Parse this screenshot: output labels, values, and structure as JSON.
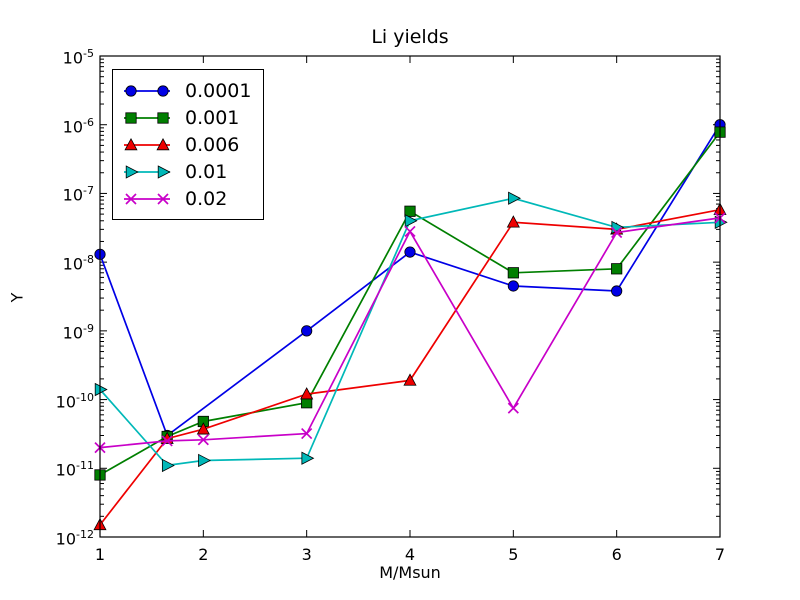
{
  "figure": {
    "background": "#ffffff",
    "axis_color": "#000000"
  },
  "chart_data": {
    "type": "line",
    "title": "Li yields",
    "xlabel": "M/Msun",
    "ylabel": "Y",
    "grid": false,
    "xlim": [
      1,
      7
    ],
    "x_ticks": [
      1,
      2,
      3,
      4,
      5,
      6,
      7
    ],
    "y_scale": "log",
    "ylim_exponents": [
      -12,
      -5
    ],
    "y_tick_exponents": [
      -5,
      -6,
      -7,
      -8,
      -9,
      -10,
      -11,
      -12
    ],
    "legend": {
      "position": "upper left"
    },
    "series": [
      {
        "name": "0.0001",
        "color": "#0000e6",
        "marker": "circle",
        "points": [
          [
            1,
            1.3e-08
          ],
          [
            1.65,
            3e-11
          ],
          [
            3,
            1e-09
          ],
          [
            4,
            1.4e-08
          ],
          [
            5,
            4.5e-09
          ],
          [
            6,
            3.8e-09
          ],
          [
            7,
            1e-06
          ]
        ]
      },
      {
        "name": "0.001",
        "color": "#007f00",
        "marker": "square",
        "points": [
          [
            1,
            8e-12
          ],
          [
            1.65,
            2.9e-11
          ],
          [
            2,
            4.8e-11
          ],
          [
            3,
            9e-11
          ],
          [
            4,
            5.5e-08
          ],
          [
            5,
            7e-09
          ],
          [
            6,
            8e-09
          ],
          [
            7,
            7.8e-07
          ]
        ]
      },
      {
        "name": "0.006",
        "color": "#ee0000",
        "marker": "triangle-up",
        "points": [
          [
            1,
            1.5e-12
          ],
          [
            1.65,
            2.7e-11
          ],
          [
            2,
            3.7e-11
          ],
          [
            3,
            1.2e-10
          ],
          [
            4,
            1.9e-10
          ],
          [
            5,
            3.8e-08
          ],
          [
            6,
            3e-08
          ],
          [
            7,
            5.8e-08
          ]
        ]
      },
      {
        "name": "0.01",
        "color": "#00b8b8",
        "marker": "triangle-right",
        "points": [
          [
            1,
            1.4e-10
          ],
          [
            1.65,
            1.1e-11
          ],
          [
            2,
            1.3e-11
          ],
          [
            3,
            1.4e-11
          ],
          [
            4,
            4e-08
          ],
          [
            5,
            8.5e-08
          ],
          [
            6,
            3.2e-08
          ],
          [
            7,
            3.8e-08
          ]
        ]
      },
      {
        "name": "0.02",
        "color": "#c800c8",
        "marker": "x",
        "points": [
          [
            1,
            2e-11
          ],
          [
            1.65,
            2.5e-11
          ],
          [
            2,
            2.6e-11
          ],
          [
            3,
            3.2e-11
          ],
          [
            4,
            2.8e-08
          ],
          [
            5,
            7.5e-11
          ],
          [
            6,
            2.7e-08
          ],
          [
            7,
            4.4e-08
          ]
        ]
      }
    ]
  }
}
